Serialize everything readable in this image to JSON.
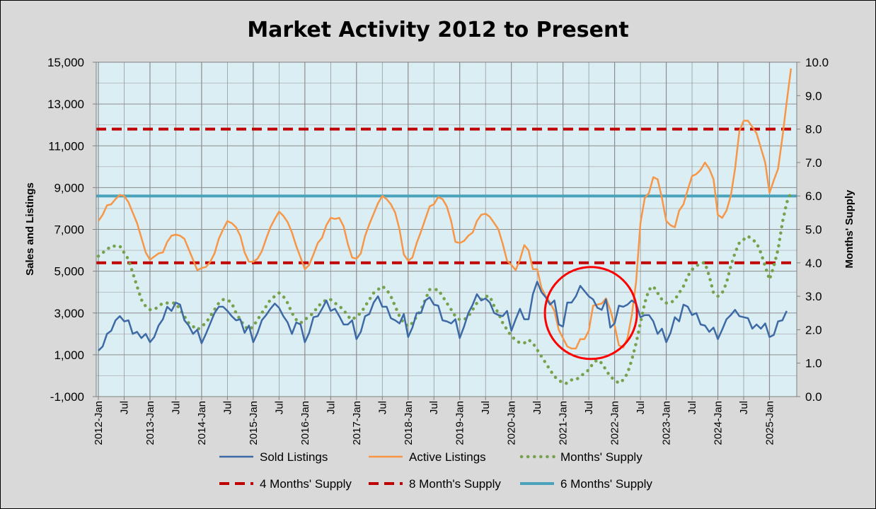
{
  "chart_data": {
    "type": "line",
    "title": "Market Activity 2012 to Present",
    "ylabel": "Sales and Listings",
    "y2label": "Months' Supply",
    "ylim": [
      -1000,
      15000
    ],
    "y2lim": [
      0,
      10
    ],
    "yticks": [
      "-1,000",
      "1,000",
      "3,000",
      "5,000",
      "7,000",
      "9,000",
      "11,000",
      "13,000",
      "15,000"
    ],
    "y2ticks": [
      "0.0",
      "1.0",
      "2.0",
      "3.0",
      "4.0",
      "5.0",
      "6.0",
      "7.0",
      "8.0",
      "9.0",
      "10.0"
    ],
    "xticks": [
      "2012-Jan",
      "Jul",
      "2013-Jan",
      "Jul",
      "2014-Jan",
      "Jul",
      "2015-Jan",
      "Jul",
      "2016-Jan",
      "Jul",
      "2017-Jan",
      "Jul",
      "2018-Jan",
      "Jul",
      "2019-Jan",
      "Jul",
      "2020-Jan",
      "Jul",
      "2021-Jan",
      "Jul",
      "2022-Jan",
      "Jul",
      "2023-Jan",
      "Jul",
      "2024-Jan",
      "Jul",
      "2025-Jan"
    ],
    "x_start": "2012-Jan",
    "x_end": "2025-May",
    "grid": true,
    "legend_position": "bottom",
    "colors": {
      "background": "#d9d9d9",
      "plot_area": "#dbeef4",
      "sold": "#3d6aa6",
      "active": "#f79646",
      "supply": "#77a24d",
      "supply_lines": "#c00000",
      "six_month": "#4aa2bb",
      "annotation_circle": "#ff0000"
    },
    "series": [
      {
        "name": "Sold Listings",
        "axis": "left",
        "style": "solid",
        "values": [
          1200,
          1400,
          2000,
          2150,
          2650,
          2850,
          2600,
          2650,
          2000,
          2100,
          1800,
          2000,
          1600,
          1850,
          2400,
          2700,
          3300,
          3100,
          3500,
          3400,
          2650,
          2400,
          2000,
          2200,
          1550,
          2000,
          2500,
          3000,
          3300,
          3300,
          3100,
          2850,
          2650,
          2700,
          2050,
          2400,
          1600,
          2050,
          2650,
          2900,
          3200,
          3450,
          3250,
          2850,
          2550,
          2000,
          2550,
          2450,
          1600,
          2050,
          2800,
          2850,
          3200,
          3600,
          3100,
          3200,
          2850,
          2450,
          2450,
          2650,
          1750,
          2100,
          2850,
          2950,
          3500,
          3800,
          3300,
          3300,
          2750,
          2650,
          2500,
          2950,
          1850,
          2300,
          3000,
          3000,
          3600,
          3750,
          3400,
          3350,
          2650,
          2600,
          2500,
          2700,
          1800,
          2350,
          3000,
          3400,
          3900,
          3600,
          3700,
          3500,
          3000,
          2900,
          2850,
          3100,
          2150,
          2700,
          3200,
          2700,
          2700,
          3900,
          4500,
          4000,
          3750,
          3400,
          3600,
          2450,
          2350,
          3500,
          3500,
          3800,
          4300,
          4050,
          3800,
          3650,
          3250,
          3150,
          3650,
          2300,
          2500,
          3350,
          3300,
          3400,
          3600,
          3450,
          2800,
          2900,
          2900,
          2600,
          2000,
          2250,
          1600,
          2050,
          2800,
          2600,
          3400,
          3300,
          2900,
          3000,
          2450,
          2400,
          2100,
          2300,
          1750,
          2200,
          2700,
          2900,
          3150,
          2850,
          2800,
          2750,
          2250,
          2450,
          2250,
          2500,
          1850,
          1950,
          2600,
          2650,
          3100
        ]
      },
      {
        "name": "Active Listings",
        "axis": "left",
        "style": "solid",
        "values": [
          7400,
          7700,
          8150,
          8200,
          8450,
          8650,
          8600,
          8300,
          7800,
          7300,
          6600,
          5900,
          5550,
          5700,
          5850,
          5900,
          6400,
          6700,
          6750,
          6700,
          6550,
          6050,
          5550,
          5050,
          5150,
          5200,
          5450,
          5850,
          6550,
          7000,
          7400,
          7300,
          7100,
          6700,
          5900,
          5450,
          5450,
          5600,
          5950,
          6550,
          7100,
          7500,
          7850,
          7650,
          7350,
          6850,
          6200,
          5650,
          5100,
          5300,
          5800,
          6350,
          6600,
          7200,
          7550,
          7500,
          7550,
          7150,
          6300,
          5650,
          5600,
          5850,
          6700,
          7250,
          7750,
          8250,
          8600,
          8450,
          8200,
          7800,
          7000,
          5800,
          5500,
          5650,
          6350,
          6900,
          7500,
          8100,
          8200,
          8550,
          8450,
          8100,
          7400,
          6400,
          6350,
          6450,
          6700,
          6850,
          7400,
          7700,
          7750,
          7600,
          7300,
          7000,
          6300,
          5500,
          5300,
          5050,
          5550,
          6250,
          6000,
          5100,
          5100,
          4200,
          3800,
          3500,
          3100,
          2200,
          1800,
          1400,
          1300,
          1300,
          1750,
          1750,
          2150,
          3350,
          3400,
          3450,
          3700,
          3150,
          2400,
          1450,
          1350,
          1800,
          2900,
          4500,
          7300,
          8500,
          8750,
          9500,
          9400,
          8500,
          7400,
          7200,
          7100,
          7900,
          8200,
          8900,
          9550,
          9650,
          9850,
          10200,
          9900,
          9400,
          7700,
          7550,
          7900,
          8600,
          9900,
          11700,
          12200,
          12200,
          11900,
          11600,
          10900,
          10200,
          8750,
          9350,
          9900,
          11400,
          13100,
          14700
        ]
      },
      {
        "name": "Months' Supply",
        "axis": "right",
        "style": "dotted",
        "values": [
          4.2,
          4.3,
          4.4,
          4.5,
          4.5,
          4.5,
          4.3,
          4.1,
          3.7,
          3.3,
          2.9,
          2.7,
          2.6,
          2.6,
          2.7,
          2.8,
          2.8,
          2.8,
          2.8,
          2.6,
          2.4,
          2.2,
          2.1,
          2.0,
          2.1,
          2.2,
          2.4,
          2.6,
          2.8,
          2.9,
          2.9,
          2.8,
          2.5,
          2.3,
          2.1,
          2.0,
          2.1,
          2.3,
          2.5,
          2.7,
          2.9,
          3.0,
          3.1,
          3.0,
          2.8,
          2.5,
          2.3,
          2.2,
          2.3,
          2.4,
          2.5,
          2.7,
          2.8,
          2.9,
          2.9,
          2.8,
          2.7,
          2.6,
          2.4,
          2.3,
          2.4,
          2.5,
          2.7,
          2.9,
          3.1,
          3.2,
          3.3,
          3.2,
          3.0,
          2.7,
          2.4,
          2.2,
          2.1,
          2.2,
          2.4,
          2.6,
          2.9,
          3.2,
          3.2,
          3.2,
          3.0,
          2.8,
          2.6,
          2.4,
          2.3,
          2.3,
          2.4,
          2.6,
          2.8,
          2.9,
          3.0,
          3.0,
          2.7,
          2.5,
          2.2,
          2.0,
          1.8,
          1.7,
          1.6,
          1.6,
          1.7,
          1.6,
          1.4,
          1.2,
          1.0,
          0.8,
          0.6,
          0.5,
          0.4,
          0.4,
          0.5,
          0.5,
          0.6,
          0.7,
          0.8,
          1.0,
          1.1,
          1.0,
          0.8,
          0.6,
          0.5,
          0.4,
          0.5,
          0.7,
          1.1,
          1.6,
          2.2,
          2.8,
          3.2,
          3.3,
          3.1,
          2.9,
          2.8,
          2.8,
          2.9,
          3.1,
          3.3,
          3.6,
          3.8,
          3.9,
          4.0,
          4.0,
          3.6,
          3.1,
          3.0,
          3.1,
          3.4,
          3.9,
          4.3,
          4.6,
          4.7,
          4.8,
          4.7,
          4.6,
          4.3,
          3.9,
          3.5,
          3.9,
          4.4,
          5.2,
          5.8,
          6.1
        ]
      },
      {
        "name": "4 Months' Supply",
        "axis": "right",
        "style": "dashed",
        "constant": 4
      },
      {
        "name": "8 Month's Supply",
        "axis": "right",
        "style": "dashed",
        "constant": 8
      },
      {
        "name": "6 Months' Supply",
        "axis": "right",
        "style": "solid",
        "constant": 6
      }
    ],
    "annotation": {
      "type": "circle",
      "center_month": "2021-Jul",
      "center_value": 3000,
      "radius_value": 2200
    }
  }
}
